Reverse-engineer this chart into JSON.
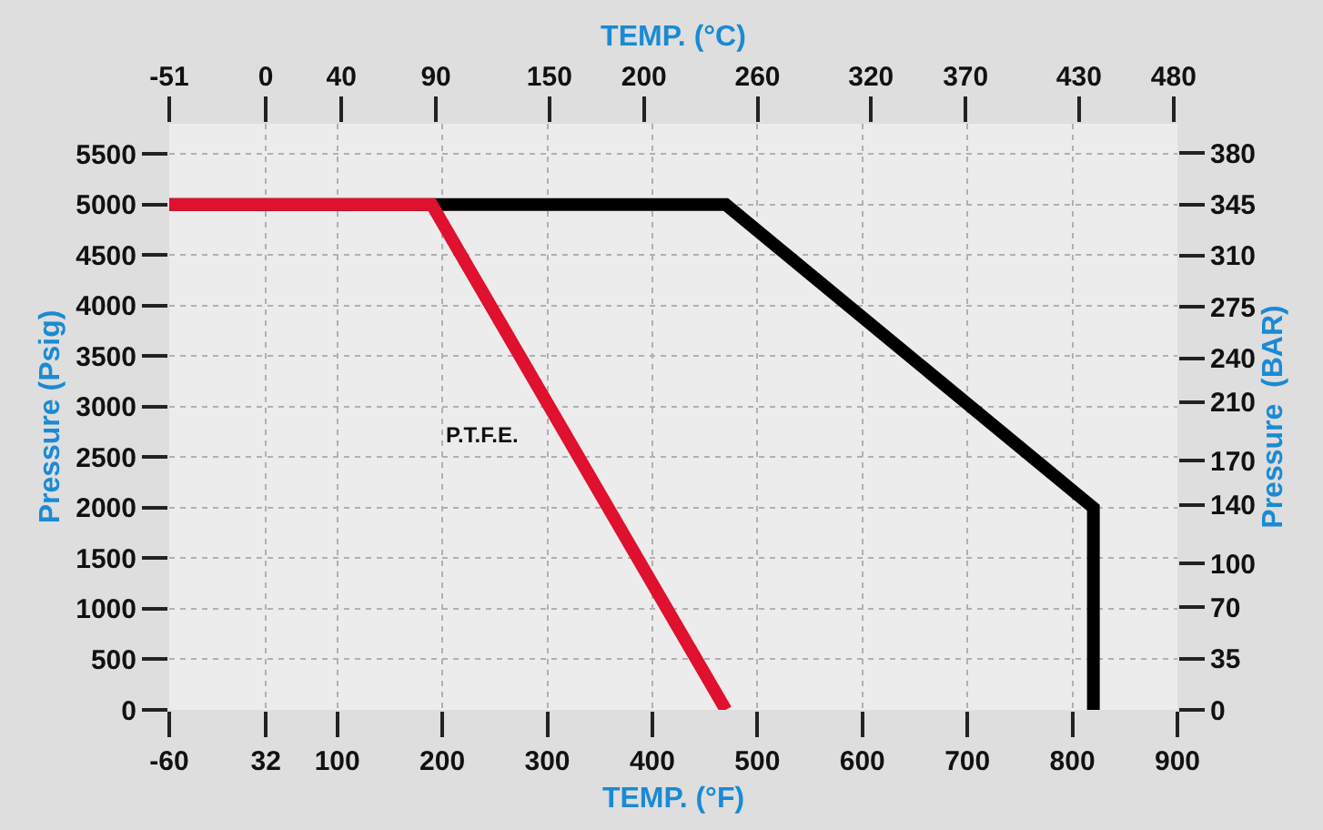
{
  "chart_data": {
    "type": "line",
    "xlabel": "TEMP. (°F)",
    "x2label": "TEMP. (°C)",
    "ylabel": "Pressure (Psig)",
    "y2label": "Pressure  (BAR)",
    "series": [
      {
        "color": "#000000",
        "x": [
          -60,
          470,
          820,
          820
        ],
        "values": [
          5000,
          5000,
          2000,
          0
        ]
      },
      {
        "color": "#e0102f",
        "x": [
          -60,
          190,
          470
        ],
        "values": [
          5000,
          5000,
          0
        ]
      }
    ],
    "annotations": [
      "P.T.F.E."
    ],
    "xlim": [
      -60,
      900
    ],
    "xticks": [
      -60,
      32,
      100,
      200,
      300,
      400,
      500,
      600,
      700,
      800,
      900
    ],
    "x2lim": [
      -51,
      482
    ],
    "x2ticks": [
      -51,
      0,
      40,
      90,
      150,
      200,
      260,
      320,
      370,
      430,
      480
    ],
    "ylim": [
      0,
      5800
    ],
    "yticks": [
      0,
      500,
      1000,
      1500,
      2000,
      2500,
      3000,
      3500,
      4000,
      4500,
      5000,
      5500
    ],
    "y2lim": [
      0,
      400
    ],
    "y2ticks": [
      0,
      35,
      70,
      100,
      140,
      170,
      210,
      240,
      275,
      310,
      345,
      380
    ],
    "grid": true,
    "marker": "none",
    "line_style": "solid"
  }
}
